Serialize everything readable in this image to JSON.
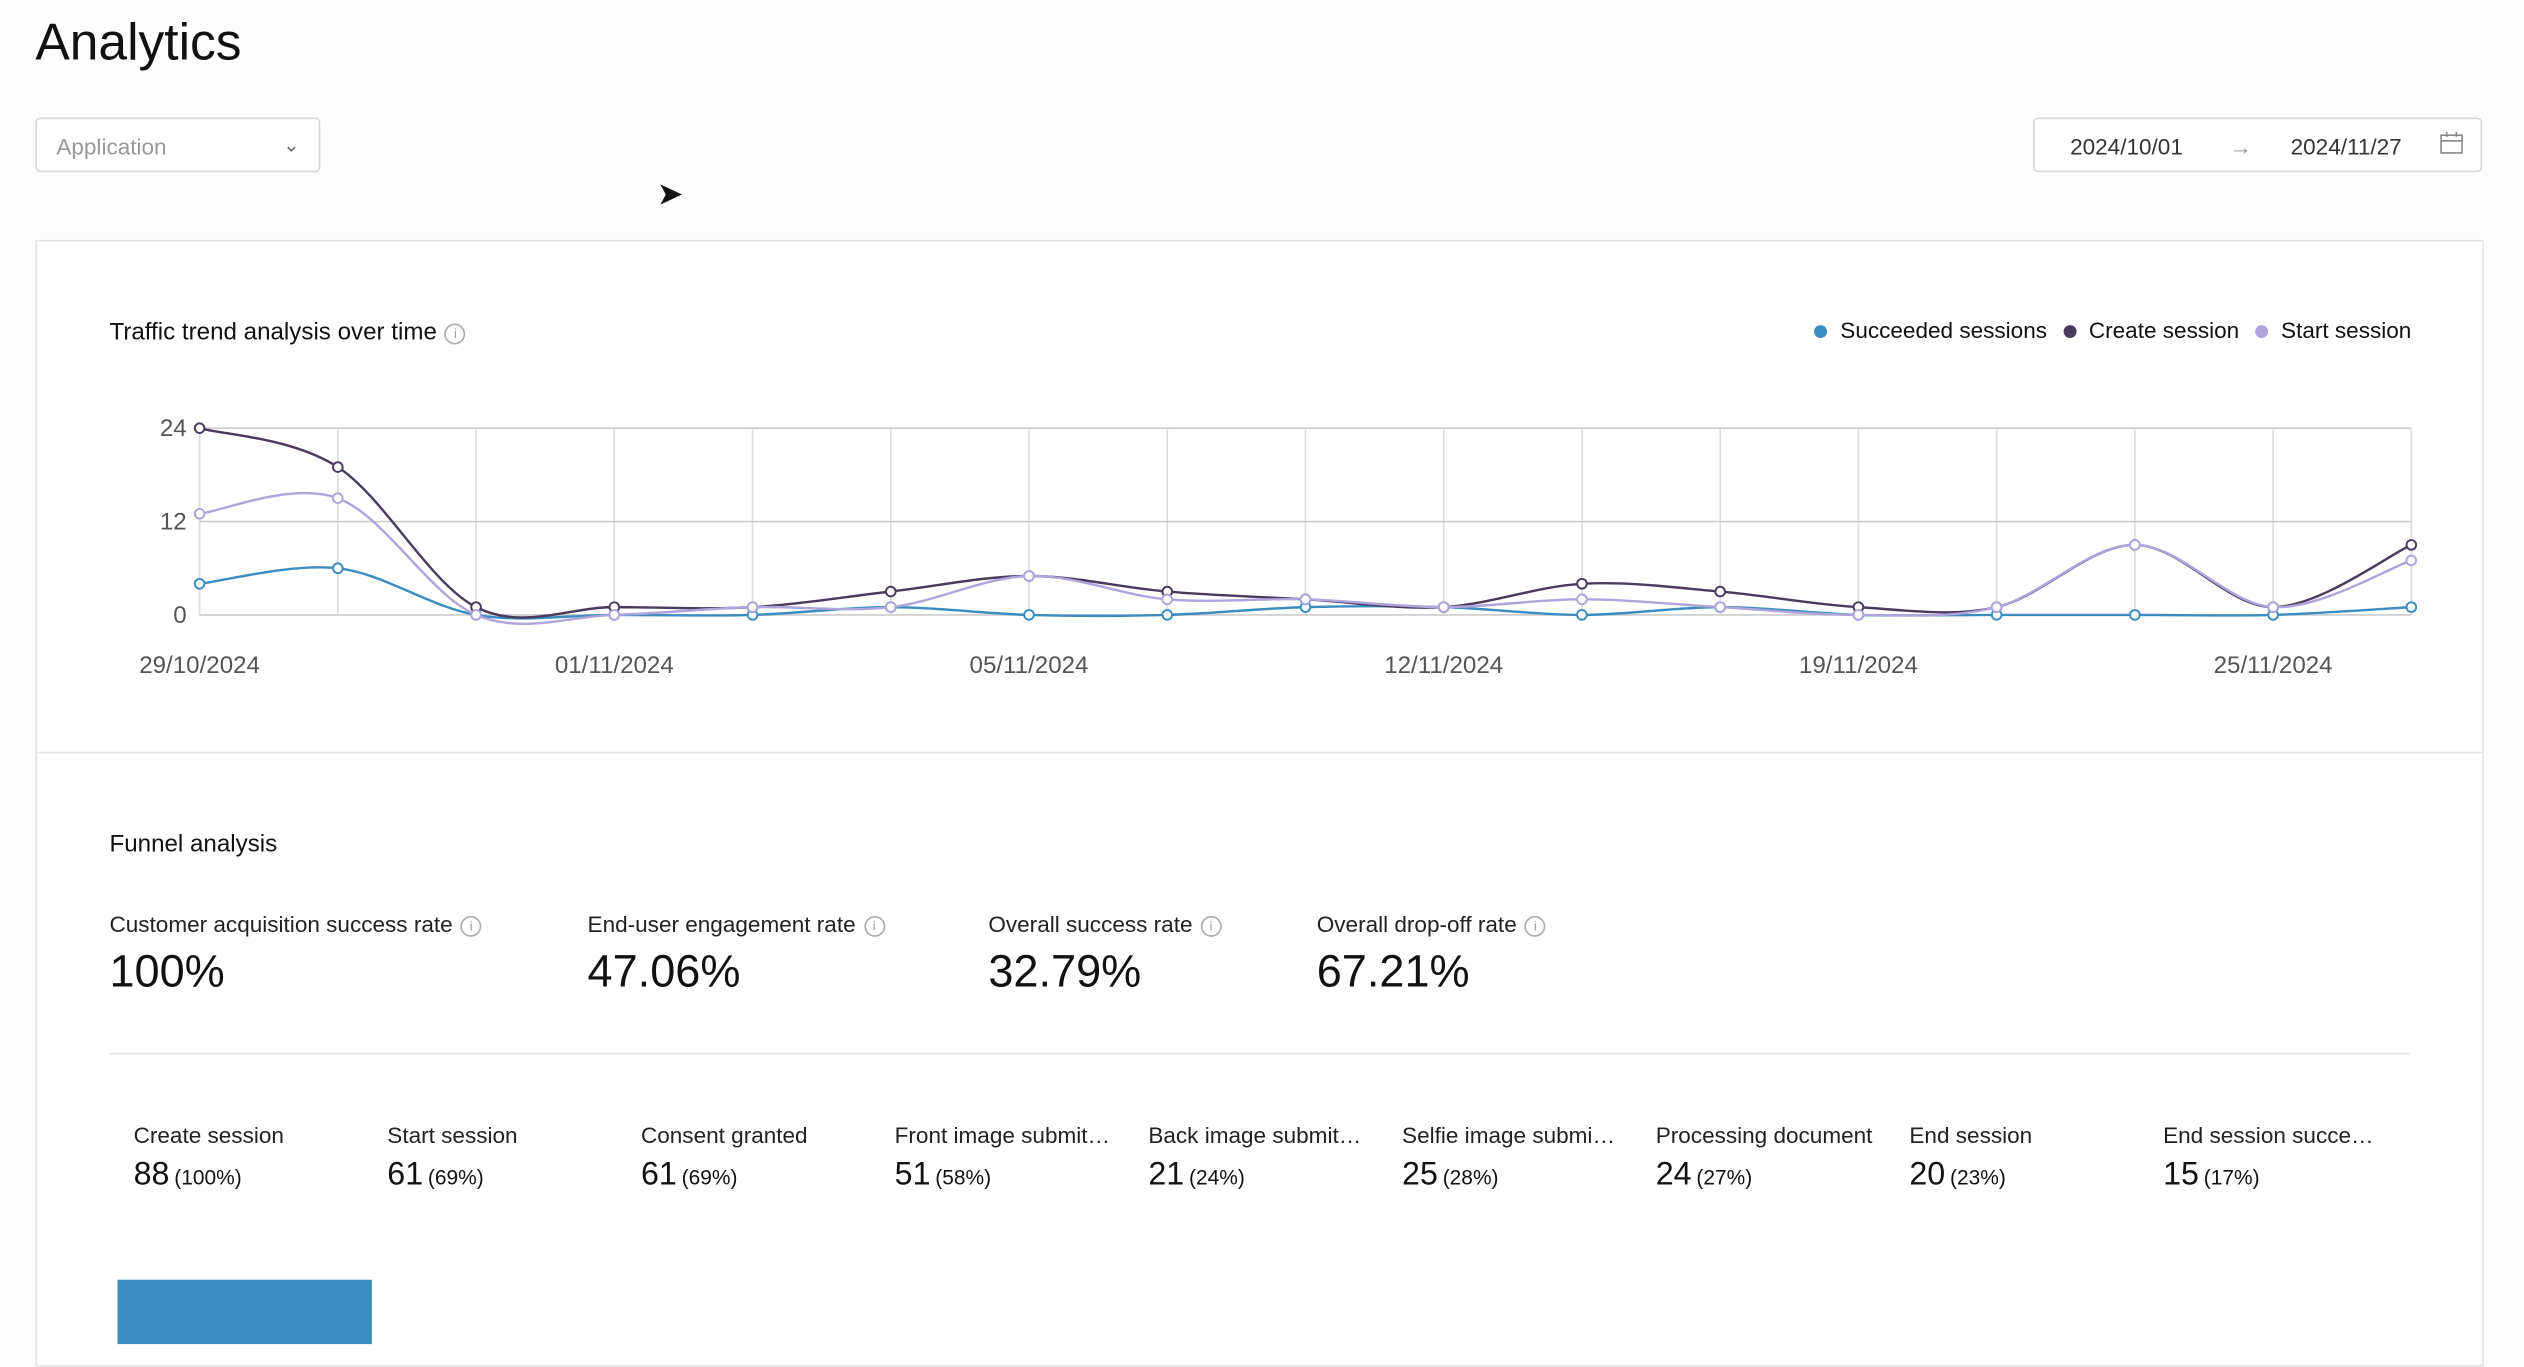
{
  "page": {
    "title": "Analytics"
  },
  "filters": {
    "application_placeholder": "Application",
    "date_from": "2024/10/01",
    "date_to": "2024/11/27",
    "arrow": "→"
  },
  "traffic": {
    "title": "Traffic trend analysis over time"
  },
  "chart_data": {
    "type": "line",
    "title": "Traffic trend analysis over time",
    "ylim": [
      0,
      24
    ],
    "yticks": [
      0,
      12,
      24
    ],
    "xticks": [
      {
        "index": 0,
        "label": "29/10/2024"
      },
      {
        "index": 3,
        "label": "01/11/2024"
      },
      {
        "index": 6,
        "label": "05/11/2024"
      },
      {
        "index": 9,
        "label": "12/11/2024"
      },
      {
        "index": 12,
        "label": "19/11/2024"
      },
      {
        "index": 15,
        "label": "25/11/2024"
      }
    ],
    "legend_position": "top-right",
    "series": [
      {
        "name": "Succeeded sessions",
        "color": "#3a8dbf",
        "values": [
          4,
          6,
          0,
          0,
          0,
          1,
          0,
          0,
          1,
          1,
          0,
          1,
          0,
          0,
          0,
          0,
          1
        ]
      },
      {
        "name": "Create session",
        "color": "#4a3a5e",
        "values": [
          24,
          19,
          1,
          1,
          1,
          3,
          5,
          3,
          2,
          1,
          4,
          3,
          1,
          1,
          9,
          1,
          9
        ]
      },
      {
        "name": "Start session",
        "color": "#b0a4dc",
        "values": [
          13,
          15,
          0,
          0,
          1,
          1,
          5,
          2,
          2,
          1,
          2,
          1,
          0,
          1,
          9,
          1,
          7
        ]
      }
    ]
  },
  "funnel": {
    "title": "Funnel analysis",
    "metrics": [
      {
        "label": "Customer acquisition success rate",
        "value": "100%"
      },
      {
        "label": "End-user engagement rate",
        "value": "47.06%"
      },
      {
        "label": "Overall success rate",
        "value": "32.79%"
      },
      {
        "label": "Overall drop-off rate",
        "value": "67.21%"
      }
    ],
    "steps": [
      {
        "label": "Create session",
        "count": "88",
        "pct": "(100%)"
      },
      {
        "label": "Start session",
        "count": "61",
        "pct": "(69%)"
      },
      {
        "label": "Consent granted",
        "count": "61",
        "pct": "(69%)"
      },
      {
        "label": "Front image submitted",
        "count": "51",
        "pct": "(58%)"
      },
      {
        "label": "Back image submitted",
        "count": "21",
        "pct": "(24%)"
      },
      {
        "label": "Selfie image submitted",
        "count": "25",
        "pct": "(28%)"
      },
      {
        "label": "Processing document",
        "count": "24",
        "pct": "(27%)"
      },
      {
        "label": "End session",
        "count": "20",
        "pct": "(23%)"
      },
      {
        "label": "End session succeeded",
        "count": "15",
        "pct": "(17%)"
      }
    ]
  }
}
